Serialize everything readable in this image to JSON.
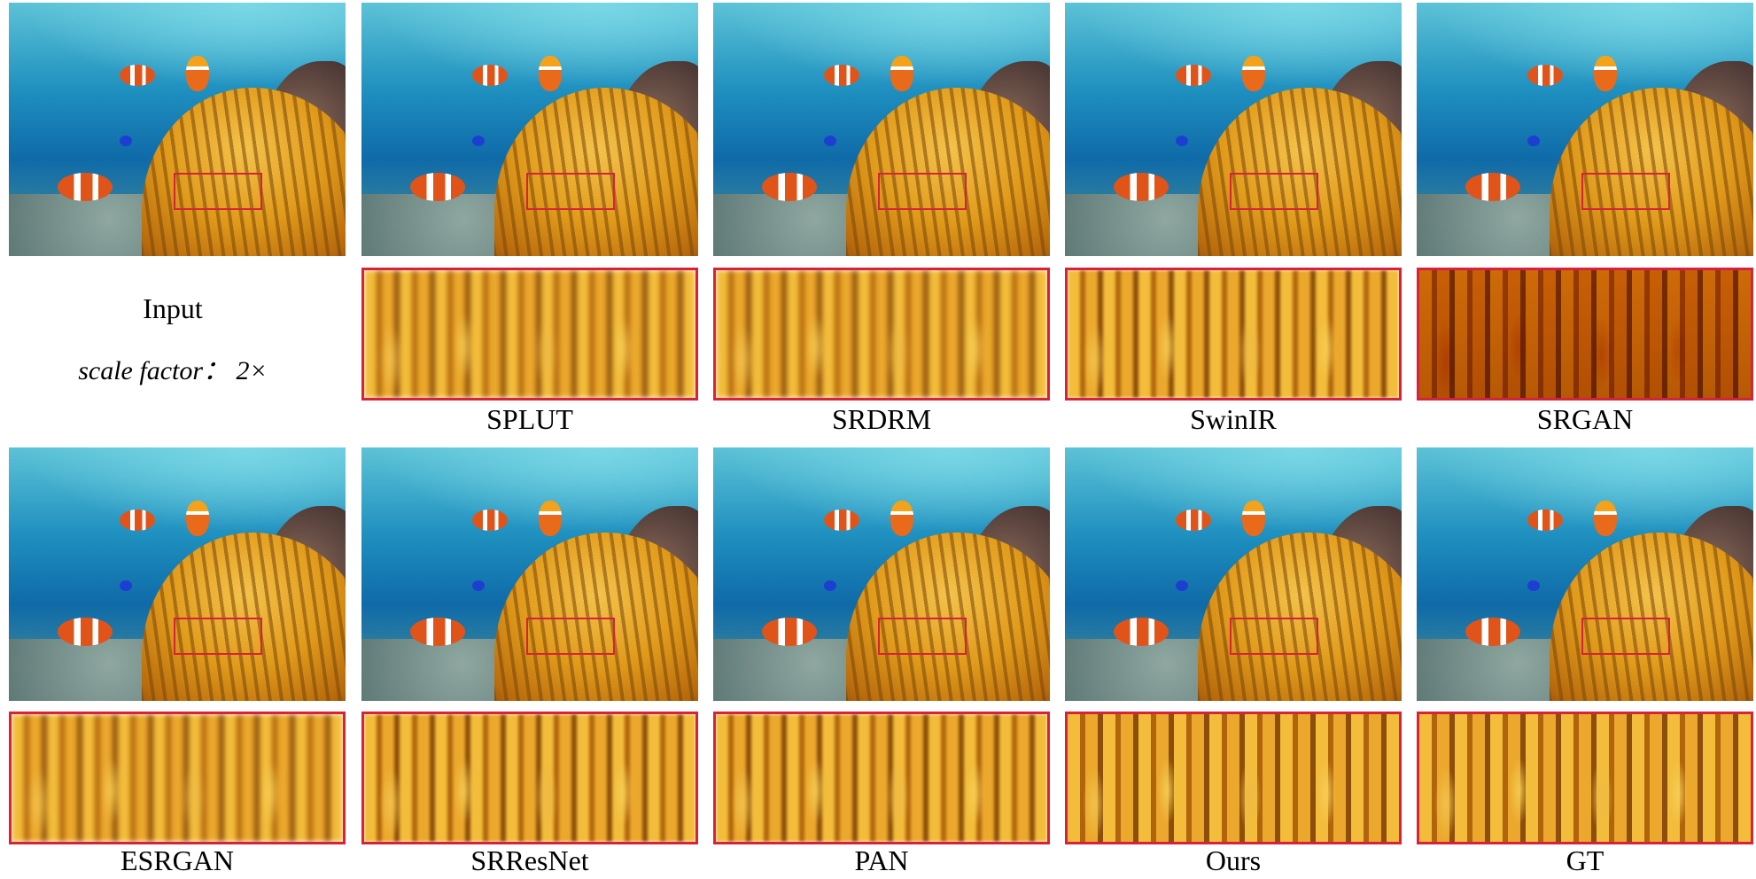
{
  "input_panel": {
    "title": "Input",
    "scale_text": "scale factor： 2×"
  },
  "top_methods": [
    "SPLUT",
    "SRDRM",
    "SwinIR",
    "SRGAN"
  ],
  "bottom_methods": [
    "ESRGAN",
    "SRResNet",
    "PAN",
    "Ours",
    "GT"
  ],
  "colors": {
    "highlight_box": "#d8213a"
  }
}
